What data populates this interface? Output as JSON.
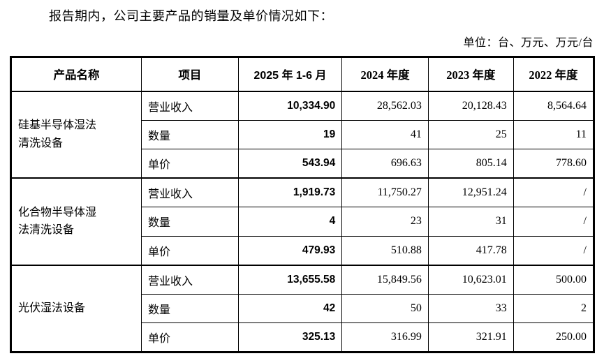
{
  "page": {
    "intro": "报告期内，公司主要产品的销量及单价情况如下：",
    "unit_note": "单位：台、万元、万元/台"
  },
  "table": {
    "headers": [
      "产品名称",
      "项目",
      "2025 年 1-6 月",
      "2024 年度",
      "2023 年度",
      "2022 年度"
    ],
    "products": [
      {
        "name": "硅基半导体湿法\n清洗设备",
        "rows": [
          {
            "label": "营业收入",
            "values": [
              "10,334.90",
              "28,562.03",
              "20,128.43",
              "8,564.64"
            ]
          },
          {
            "label": "数量",
            "values": [
              "19",
              "41",
              "25",
              "11"
            ]
          },
          {
            "label": "单价",
            "values": [
              "543.94",
              "696.63",
              "805.14",
              "778.60"
            ]
          }
        ]
      },
      {
        "name": "化合物半导体湿\n法清洗设备",
        "rows": [
          {
            "label": "营业收入",
            "values": [
              "1,919.73",
              "11,750.27",
              "12,951.24",
              "/"
            ]
          },
          {
            "label": "数量",
            "values": [
              "4",
              "23",
              "31",
              "/"
            ]
          },
          {
            "label": "单价",
            "values": [
              "479.93",
              "510.88",
              "417.78",
              "/"
            ]
          }
        ]
      },
      {
        "name": "光伏湿法设备",
        "rows": [
          {
            "label": "营业收入",
            "values": [
              "13,655.58",
              "15,849.56",
              "10,623.01",
              "500.00"
            ]
          },
          {
            "label": "数量",
            "values": [
              "42",
              "50",
              "33",
              "2"
            ]
          },
          {
            "label": "单价",
            "values": [
              "325.13",
              "316.99",
              "321.91",
              "250.00"
            ]
          }
        ]
      }
    ]
  }
}
